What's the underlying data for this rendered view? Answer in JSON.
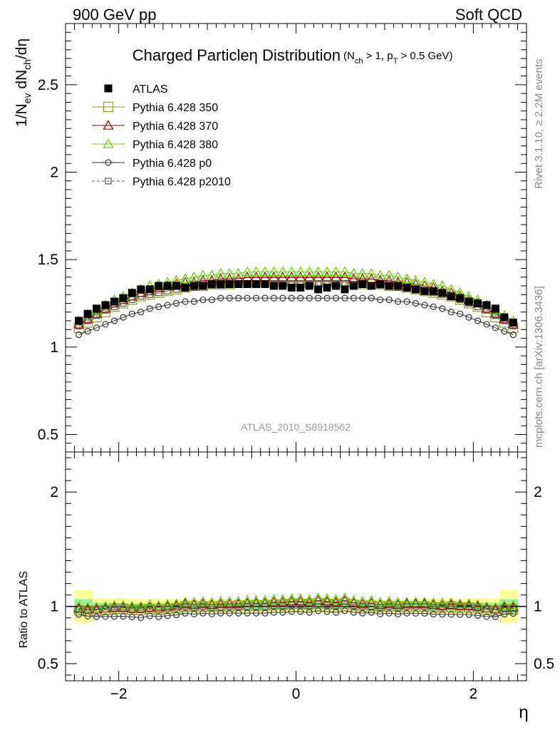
{
  "header": {
    "left": "900 GeV pp",
    "right": "Soft QCD"
  },
  "side_labels": {
    "rivet": "Rivet 3.1.10, ≥ 2.2M events",
    "mcplots": "mcplots.cern.ch [arXiv:1306.3436]"
  },
  "chart_data": {
    "type": "scatter",
    "title": "Charged Particleη Distribution",
    "title_sub": "(N_ch > 1, p_T > 0.5 GeV)",
    "watermark": "ATLAS_2010_S8918562",
    "xlabel": "η",
    "ylabel": "1/N_ev dN_ch/dη",
    "ratio_ylabel": "Ratio to ATLAS",
    "xlim": [
      -2.6,
      2.6
    ],
    "ylim": [
      0.4,
      2.85
    ],
    "ratio_ylim": [
      0.35,
      2.35
    ],
    "x_ticks": [
      "−2",
      "0",
      "2"
    ],
    "y_ticks": [
      "0.5",
      "1",
      "1.5",
      "2",
      "2.5"
    ],
    "ratio_y_ticks": [
      "0.5",
      "1",
      "2"
    ],
    "legend_position": "top-left",
    "x": [
      -2.45,
      -2.35,
      -2.25,
      -2.15,
      -2.05,
      -1.95,
      -1.85,
      -1.75,
      -1.65,
      -1.55,
      -1.45,
      -1.35,
      -1.25,
      -1.15,
      -1.05,
      -0.95,
      -0.85,
      -0.75,
      -0.65,
      -0.55,
      -0.45,
      -0.35,
      -0.25,
      -0.15,
      -0.05,
      0.05,
      0.15,
      0.25,
      0.35,
      0.45,
      0.55,
      0.65,
      0.75,
      0.85,
      0.95,
      1.05,
      1.15,
      1.25,
      1.35,
      1.45,
      1.55,
      1.65,
      1.75,
      1.85,
      1.95,
      2.05,
      2.15,
      2.25,
      2.35,
      2.45
    ],
    "series": [
      {
        "name": "ATLAS",
        "color": "#000000",
        "marker": "filled-square",
        "values": [
          1.15,
          1.19,
          1.22,
          1.24,
          1.26,
          1.28,
          1.31,
          1.33,
          1.33,
          1.35,
          1.35,
          1.35,
          1.34,
          1.35,
          1.35,
          1.36,
          1.36,
          1.36,
          1.36,
          1.36,
          1.36,
          1.36,
          1.35,
          1.35,
          1.34,
          1.34,
          1.35,
          1.33,
          1.34,
          1.35,
          1.33,
          1.35,
          1.36,
          1.35,
          1.36,
          1.35,
          1.35,
          1.34,
          1.33,
          1.32,
          1.32,
          1.31,
          1.29,
          1.28,
          1.26,
          1.25,
          1.24,
          1.22,
          1.17,
          1.14
        ]
      },
      {
        "name": "Pythia 6.428 350",
        "color": "#999933",
        "marker": "open-square",
        "line": "solid",
        "values": [
          1.11,
          1.14,
          1.17,
          1.2,
          1.23,
          1.25,
          1.27,
          1.29,
          1.3,
          1.31,
          1.32,
          1.33,
          1.34,
          1.35,
          1.35,
          1.36,
          1.36,
          1.36,
          1.37,
          1.37,
          1.37,
          1.37,
          1.37,
          1.37,
          1.37,
          1.37,
          1.37,
          1.37,
          1.37,
          1.37,
          1.37,
          1.37,
          1.36,
          1.36,
          1.36,
          1.35,
          1.35,
          1.34,
          1.33,
          1.32,
          1.31,
          1.3,
          1.29,
          1.27,
          1.25,
          1.23,
          1.2,
          1.17,
          1.14,
          1.11
        ]
      },
      {
        "name": "Pythia 6.428 370",
        "color": "#990000",
        "marker": "open-triangle",
        "line": "solid",
        "values": [
          1.13,
          1.16,
          1.19,
          1.22,
          1.25,
          1.27,
          1.29,
          1.31,
          1.32,
          1.34,
          1.35,
          1.36,
          1.37,
          1.37,
          1.38,
          1.38,
          1.39,
          1.39,
          1.39,
          1.4,
          1.4,
          1.4,
          1.4,
          1.4,
          1.4,
          1.4,
          1.4,
          1.4,
          1.4,
          1.4,
          1.4,
          1.39,
          1.39,
          1.39,
          1.38,
          1.38,
          1.37,
          1.37,
          1.36,
          1.35,
          1.34,
          1.32,
          1.31,
          1.29,
          1.27,
          1.25,
          1.22,
          1.19,
          1.16,
          1.13
        ]
      },
      {
        "name": "Pythia 6.428 380",
        "color": "#66cc00",
        "marker": "open-triangle",
        "line": "solid",
        "values": [
          1.15,
          1.18,
          1.21,
          1.24,
          1.27,
          1.29,
          1.31,
          1.33,
          1.35,
          1.36,
          1.37,
          1.38,
          1.39,
          1.4,
          1.41,
          1.41,
          1.42,
          1.42,
          1.42,
          1.43,
          1.43,
          1.43,
          1.43,
          1.43,
          1.43,
          1.43,
          1.43,
          1.43,
          1.43,
          1.43,
          1.43,
          1.42,
          1.42,
          1.42,
          1.41,
          1.41,
          1.4,
          1.39,
          1.38,
          1.37,
          1.36,
          1.35,
          1.33,
          1.31,
          1.29,
          1.27,
          1.24,
          1.21,
          1.18,
          1.15
        ]
      },
      {
        "name": "Pythia 6.428 p0",
        "color": "#333333",
        "marker": "open-circle",
        "line": "solid",
        "values": [
          1.07,
          1.09,
          1.11,
          1.13,
          1.15,
          1.17,
          1.19,
          1.2,
          1.22,
          1.23,
          1.24,
          1.25,
          1.26,
          1.26,
          1.27,
          1.27,
          1.28,
          1.28,
          1.28,
          1.28,
          1.28,
          1.28,
          1.28,
          1.28,
          1.28,
          1.28,
          1.28,
          1.28,
          1.28,
          1.28,
          1.28,
          1.28,
          1.28,
          1.28,
          1.27,
          1.27,
          1.26,
          1.26,
          1.25,
          1.24,
          1.23,
          1.22,
          1.2,
          1.19,
          1.17,
          1.15,
          1.13,
          1.11,
          1.09,
          1.07
        ]
      },
      {
        "name": "Pythia 6.428 p2010",
        "color": "#555555",
        "marker": "open-square-small",
        "line": "dashed",
        "values": [
          1.12,
          1.15,
          1.18,
          1.21,
          1.23,
          1.25,
          1.27,
          1.29,
          1.3,
          1.31,
          1.32,
          1.33,
          1.34,
          1.34,
          1.35,
          1.35,
          1.35,
          1.36,
          1.36,
          1.36,
          1.36,
          1.36,
          1.36,
          1.36,
          1.36,
          1.36,
          1.36,
          1.36,
          1.36,
          1.36,
          1.36,
          1.36,
          1.36,
          1.35,
          1.35,
          1.35,
          1.34,
          1.34,
          1.33,
          1.32,
          1.31,
          1.3,
          1.29,
          1.27,
          1.25,
          1.23,
          1.21,
          1.18,
          1.15,
          1.12
        ]
      }
    ],
    "data_uncertainty_ratio": [
      0.09,
      0.09,
      0.045,
      0.045,
      0.045,
      0.045,
      0.04,
      0.04,
      0.04,
      0.04,
      0.04,
      0.04,
      0.035,
      0.035,
      0.035,
      0.035,
      0.035,
      0.035,
      0.035,
      0.035,
      0.035,
      0.035,
      0.035,
      0.035,
      0.035,
      0.035,
      0.035,
      0.035,
      0.035,
      0.035,
      0.035,
      0.035,
      0.035,
      0.035,
      0.035,
      0.035,
      0.035,
      0.035,
      0.04,
      0.04,
      0.04,
      0.04,
      0.04,
      0.04,
      0.045,
      0.045,
      0.045,
      0.045,
      0.09,
      0.09
    ]
  }
}
